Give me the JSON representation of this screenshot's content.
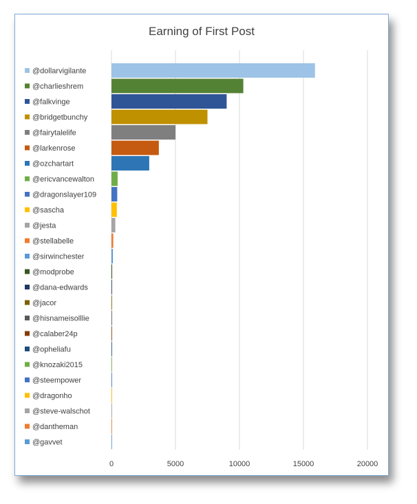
{
  "chart_data": {
    "type": "bar",
    "orientation": "horizontal",
    "title": "Earning of First Post",
    "xlim": [
      0,
      20000
    ],
    "x_ticks": [
      "0",
      "5000",
      "10000",
      "15000",
      "20000"
    ],
    "grid": "vertical",
    "legend_position": "left",
    "categories": [
      "@dollarvigilante",
      "@charlieshrem",
      "@falkvinge",
      "@bridgetbunchy",
      "@fairytalelife",
      "@larkenrose",
      "@ozchartart",
      "@ericvancewalton",
      "@dragonslayer109",
      "@sascha",
      "@jesta",
      "@stellabelle",
      "@sirwinchester",
      "@modprobe",
      "@dana-edwards",
      "@jacor",
      "@hisnameisolllie",
      "@calaber24p",
      "@opheliafu",
      "@knozaki2015",
      "@steempower",
      "@dragonho",
      "@steve-walschot",
      "@dantheman",
      "@gavvet"
    ],
    "values": [
      15900,
      10300,
      9000,
      7500,
      5000,
      3700,
      2950,
      480,
      450,
      420,
      300,
      140,
      110,
      55,
      45,
      40,
      35,
      30,
      20,
      15,
      12,
      10,
      8,
      6,
      5
    ],
    "colors": [
      "#9dc3e6",
      "#548235",
      "#2f5597",
      "#bf9000",
      "#7f7f7f",
      "#c55a11",
      "#2e75b6",
      "#70ad47",
      "#4472c4",
      "#ffc000",
      "#a5a5a5",
      "#ed7d31",
      "#5b9bd5",
      "#375623",
      "#203864",
      "#7f6000",
      "#595959",
      "#843c0c",
      "#1f4e79",
      "#70ad47",
      "#4472c4",
      "#ffc000",
      "#a5a5a5",
      "#ed7d31",
      "#5b9bd5"
    ]
  }
}
